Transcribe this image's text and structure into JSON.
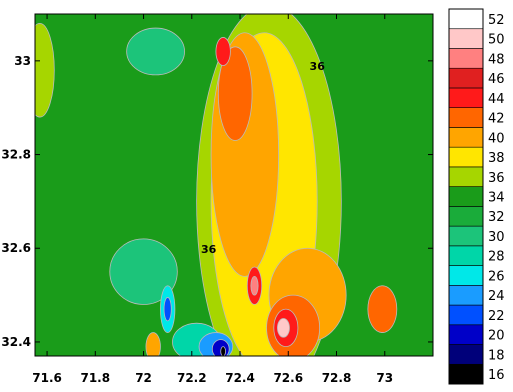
{
  "chart_data": {
    "type": "heatmap",
    "subtype": "filled-contour-map",
    "title": "",
    "xlabel": "",
    "ylabel": "",
    "xlim": [
      71.55,
      73.2
    ],
    "ylim": [
      32.37,
      33.1
    ],
    "x_ticks": [
      "71.6",
      "71.8",
      "72",
      "72.2",
      "72.4",
      "72.6",
      "72.8",
      "73"
    ],
    "x_tick_values": [
      71.6,
      71.8,
      72.0,
      72.2,
      72.4,
      72.6,
      72.8,
      73.0
    ],
    "y_ticks": [
      "32.4",
      "32.6",
      "32.8",
      "33"
    ],
    "y_tick_values": [
      32.4,
      32.6,
      32.8,
      33.0
    ],
    "grid": false,
    "colorbar": {
      "position": "right",
      "labels": [
        "16",
        "18",
        "20",
        "22",
        "24",
        "26",
        "28",
        "30",
        "32",
        "34",
        "36",
        "38",
        "40",
        "42",
        "44",
        "46",
        "48",
        "50",
        "52"
      ],
      "levels": [
        16,
        18,
        20,
        22,
        24,
        26,
        28,
        30,
        32,
        34,
        36,
        38,
        40,
        42,
        44,
        46,
        48,
        50,
        52
      ],
      "colors": [
        "#000000",
        "#00007a",
        "#0000c8",
        "#0050ff",
        "#1a9cff",
        "#00e8e8",
        "#00d6a8",
        "#1cc47a",
        "#1aac3a",
        "#1a9c1a",
        "#a6d600",
        "#ffe600",
        "#ffa500",
        "#ff6600",
        "#ff1a1a",
        "#e02020",
        "#ff8080",
        "#ffc8c8",
        "#ffffff"
      ]
    },
    "contour_labels": [
      {
        "text": "36",
        "x": 72.72,
        "y": 32.98
      },
      {
        "text": "36",
        "x": 72.27,
        "y": 32.59
      }
    ],
    "background_level": 34,
    "features": [
      {
        "level": 36,
        "x": 71.57,
        "y": 32.98,
        "rx": 0.06,
        "ry": 0.1
      },
      {
        "level": 36,
        "x": 72.52,
        "y": 32.7,
        "rx": 0.3,
        "ry": 0.42
      },
      {
        "level": 38,
        "x": 72.5,
        "y": 32.7,
        "rx": 0.22,
        "ry": 0.36
      },
      {
        "level": 40,
        "x": 72.42,
        "y": 32.8,
        "rx": 0.14,
        "ry": 0.26
      },
      {
        "level": 40,
        "x": 72.68,
        "y": 32.5,
        "rx": 0.16,
        "ry": 0.1
      },
      {
        "level": 42,
        "x": 72.38,
        "y": 32.93,
        "rx": 0.07,
        "ry": 0.1
      },
      {
        "level": 44,
        "x": 72.33,
        "y": 33.02,
        "rx": 0.03,
        "ry": 0.03
      },
      {
        "level": 42,
        "x": 72.62,
        "y": 32.43,
        "rx": 0.11,
        "ry": 0.07
      },
      {
        "level": 44,
        "x": 72.59,
        "y": 32.43,
        "rx": 0.05,
        "ry": 0.04
      },
      {
        "level": 50,
        "x": 72.58,
        "y": 32.43,
        "rx": 0.025,
        "ry": 0.02
      },
      {
        "level": 44,
        "x": 72.46,
        "y": 32.52,
        "rx": 0.03,
        "ry": 0.04
      },
      {
        "level": 48,
        "x": 72.46,
        "y": 32.52,
        "rx": 0.015,
        "ry": 0.02
      },
      {
        "level": 42,
        "x": 72.99,
        "y": 32.47,
        "rx": 0.06,
        "ry": 0.05
      },
      {
        "level": 30,
        "x": 72.05,
        "y": 33.02,
        "rx": 0.12,
        "ry": 0.05
      },
      {
        "level": 30,
        "x": 72.0,
        "y": 32.55,
        "rx": 0.14,
        "ry": 0.07
      },
      {
        "level": 28,
        "x": 72.22,
        "y": 32.4,
        "rx": 0.1,
        "ry": 0.04
      },
      {
        "level": 26,
        "x": 72.1,
        "y": 32.47,
        "rx": 0.03,
        "ry": 0.05
      },
      {
        "level": 22,
        "x": 72.1,
        "y": 32.47,
        "rx": 0.015,
        "ry": 0.025
      },
      {
        "level": 24,
        "x": 72.3,
        "y": 32.39,
        "rx": 0.07,
        "ry": 0.03
      },
      {
        "level": 20,
        "x": 72.32,
        "y": 32.385,
        "rx": 0.035,
        "ry": 0.02
      },
      {
        "level": 16,
        "x": 72.33,
        "y": 32.38,
        "rx": 0.01,
        "ry": 0.01
      },
      {
        "level": 40,
        "x": 72.04,
        "y": 32.39,
        "rx": 0.03,
        "ry": 0.03
      }
    ]
  }
}
